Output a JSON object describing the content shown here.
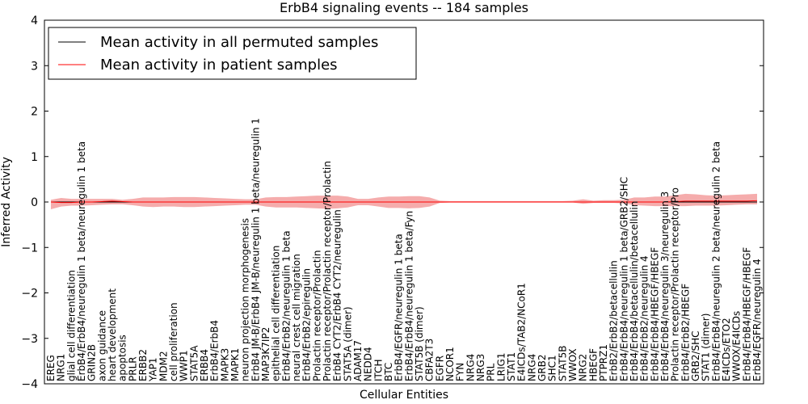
{
  "chart_data": {
    "type": "line",
    "title": "ErbB4 signaling events -- 184 samples",
    "xlabel": "Cellular Entities",
    "ylabel": "Inferred Activity",
    "ylim": [
      -4,
      4
    ],
    "yticks": [
      {
        "v": 4,
        "t": "4"
      },
      {
        "v": 3,
        "t": "3"
      },
      {
        "v": 2,
        "t": "2"
      },
      {
        "v": 1,
        "t": "1"
      },
      {
        "v": 0,
        "t": "0"
      },
      {
        "v": -1,
        "t": "−1"
      },
      {
        "v": -2,
        "t": "−2"
      },
      {
        "v": -3,
        "t": "−3"
      },
      {
        "v": -4,
        "t": "−4"
      }
    ],
    "legend_position": "top-left",
    "categories": [
      "EREG",
      "NRG1",
      "glial cell differentiation",
      "ErbB4/ErbB4/neuregulin 1 beta/neuregulin 1 beta",
      "GRIN2B",
      "axon guidance",
      "heart development",
      "apoptosis",
      "PRLR",
      "ERBB2",
      "YAP1",
      "MDM2",
      "cell proliferation",
      "WWP1",
      "STAT5A",
      "ERBB4",
      "ErbB4/ErbB4",
      "MAPK3",
      "MAPK1",
      "neuron projection morphogenesis",
      "ErbB4 JM-B/ErbB4 JM-B/neuregulin 1 beta/neuregulin 1",
      "MAP3K7IP2",
      "epithelial cell differentiation",
      "ErbB4/ErbB2/neuregulin 1 beta",
      "neural crest cell migration",
      "ErbB4/ErbB2/epiregulin",
      "Prolactin receptor/Prolactin",
      "Prolactin receptor/Prolactin receptor/Prolactin",
      "ErbB4 CYT2/ErbB4 CYT2/neuregulin",
      "STAT5A (dimer)",
      "ADAM17",
      "NEDD4",
      "ITCH",
      "BTC",
      "ErbB4/EGFR/neuregulin 1 beta",
      "ErbB4/ErbB4/neuregulin 1 beta/Fyn",
      "STAT5B (dimer)",
      "CBFA2T3",
      "EGFR",
      "NCOR1",
      "FYN",
      "NRG4",
      "NRG3",
      "PRL",
      "LRIG1",
      "STAT1",
      "E4ICDs/TAB2/NCoR1",
      "NRG4",
      "GRB2",
      "SHC1",
      "STAT5B",
      "WWOX",
      "NRG2",
      "HBEGF",
      "PTPRZ1",
      "ErbB2/ErbB2/betacellulin",
      "ErbB4/ErbB4/neuregulin 1 beta/GRB2/SHC",
      "ErbB4/ErbB4/betacellulin/betacellulin",
      "ErbB4/ErbB2/neuregulin 4",
      "ErbB4/ErbB4/HBEGF/HBEGF",
      "ErbB4/ErbB4/neuregulin 3/neuregulin 3",
      "Prolactin receptor/Prolactin receptor/Pro",
      "ErbB4/ErbB2/HBEGF",
      "GRB2/SHC",
      "STAT1 (dimer)",
      "ErbB4/ErbB4/neuregulin 2 beta/neuregulin 2 beta",
      "E4ICDs/ETO2",
      "WWOX/E4ICDs",
      "ErbB4/ErbB4/HBEGF/HBEGF",
      "ErbB4/EGFR/neuregulin 4"
    ],
    "series": [
      {
        "name": "Mean activity in all permuted samples",
        "color": "#000000",
        "values": [
          0,
          0,
          0,
          0,
          0,
          0,
          0,
          0,
          0,
          0,
          0,
          0,
          0,
          0,
          0,
          0,
          0,
          0,
          0,
          0,
          0,
          0,
          0,
          0,
          0,
          0,
          0,
          0,
          0,
          0,
          0,
          0,
          0,
          0,
          0,
          0,
          0,
          0,
          0,
          0,
          0,
          0,
          0,
          0,
          0,
          0,
          0,
          0,
          0,
          0,
          0,
          0,
          0,
          0,
          0,
          0,
          0,
          0,
          0,
          0,
          0,
          0,
          0,
          0,
          0,
          0,
          0,
          0,
          0,
          0
        ]
      },
      {
        "name": "Mean activity in patient samples",
        "color": "#ff0000",
        "values": [
          0.0,
          -0.01,
          -0.01,
          0.0,
          0.0,
          0.01,
          0.02,
          0.01,
          0.0,
          0.0,
          0.0,
          0.0,
          0.0,
          0.0,
          0.0,
          0.0,
          0.0,
          0.0,
          0.0,
          0.0,
          0.0,
          0.0,
          0.0,
          0.0,
          0.0,
          0.0,
          0.0,
          0.0,
          0.0,
          0.0,
          0.0,
          0.0,
          0.0,
          0.0,
          0.0,
          0.0,
          0.0,
          0.0,
          0.0,
          0.0,
          0.0,
          0.0,
          0.0,
          0.0,
          0.0,
          0.0,
          0.0,
          0.0,
          0.0,
          0.0,
          0.0,
          0.0,
          0.0,
          0.0,
          0.0,
          0.0,
          0.0,
          0.0,
          0.0,
          0.0,
          0.0,
          0.01,
          0.02,
          0.02,
          0.02,
          0.02,
          0.02,
          0.02,
          0.02,
          0.03
        ]
      }
    ],
    "band": {
      "color": "#f08080",
      "upper": [
        0.05,
        0.09,
        0.07,
        0.07,
        0.07,
        0.07,
        0.07,
        0.05,
        0.07,
        0.1,
        0.1,
        0.1,
        0.11,
        0.11,
        0.11,
        0.1,
        0.09,
        0.08,
        0.07,
        0.06,
        0.06,
        0.1,
        0.11,
        0.11,
        0.12,
        0.13,
        0.14,
        0.14,
        0.14,
        0.12,
        0.07,
        0.07,
        0.1,
        0.12,
        0.12,
        0.13,
        0.13,
        0.1,
        0.03,
        0.02,
        0.02,
        0.02,
        0.02,
        0.02,
        0.02,
        0.02,
        0.02,
        0.02,
        0.02,
        0.02,
        0.02,
        0.03,
        0.06,
        0.03,
        0.04,
        0.04,
        0.05,
        0.1,
        0.1,
        0.12,
        0.12,
        0.15,
        0.18,
        0.17,
        0.15,
        0.14,
        0.15,
        0.16,
        0.17,
        0.18
      ],
      "lower": [
        -0.16,
        -0.1,
        -0.08,
        -0.08,
        -0.07,
        -0.06,
        -0.05,
        -0.05,
        -0.07,
        -0.1,
        -0.11,
        -0.1,
        -0.1,
        -0.11,
        -0.11,
        -0.1,
        -0.09,
        -0.08,
        -0.07,
        -0.06,
        -0.06,
        -0.1,
        -0.12,
        -0.12,
        -0.12,
        -0.13,
        -0.14,
        -0.15,
        -0.14,
        -0.12,
        -0.07,
        -0.07,
        -0.1,
        -0.13,
        -0.13,
        -0.14,
        -0.13,
        -0.1,
        -0.02,
        -0.01,
        -0.01,
        -0.01,
        -0.01,
        -0.01,
        -0.01,
        -0.01,
        -0.01,
        -0.01,
        -0.01,
        -0.01,
        -0.01,
        -0.01,
        -0.04,
        -0.02,
        -0.02,
        -0.02,
        -0.03,
        -0.07,
        -0.08,
        -0.09,
        -0.09,
        -0.09,
        -0.09,
        -0.08,
        -0.08,
        -0.08,
        -0.07,
        -0.06,
        -0.05,
        -0.05
      ]
    }
  }
}
